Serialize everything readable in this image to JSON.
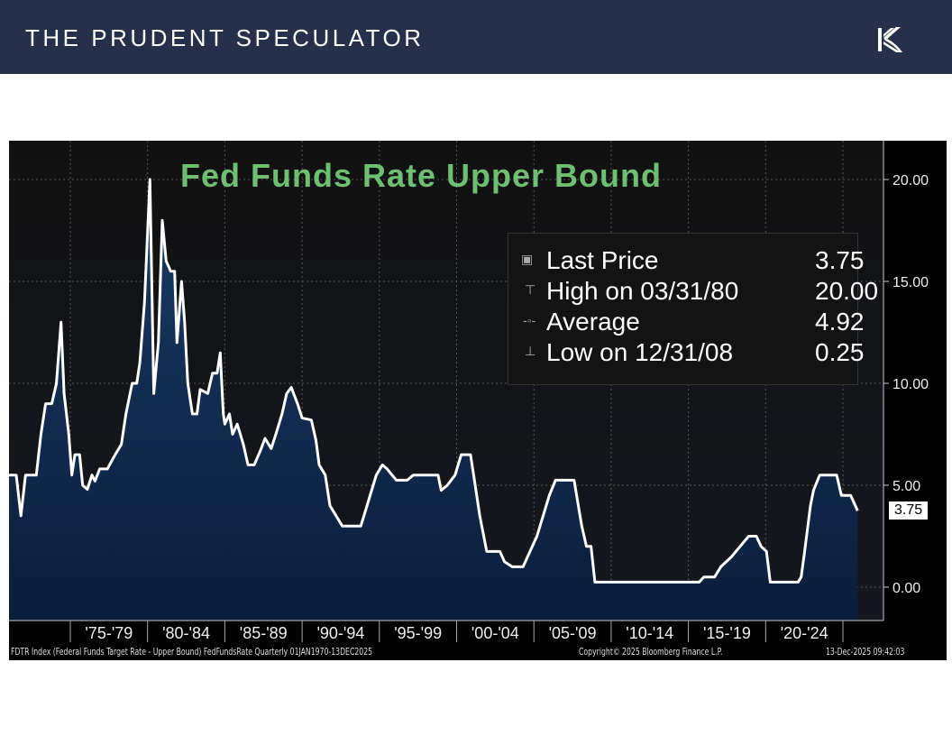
{
  "header": {
    "brand": "THE PRUDENT SPECULATOR",
    "logo": "prudent-speculator-logo"
  },
  "chart_data": {
    "type": "area",
    "title": "Fed Funds Rate Upper Bound",
    "y_ticks": [
      "0.00",
      "5.00",
      "10.00",
      "15.00",
      "20.00"
    ],
    "ylim": [
      -1.7,
      22
    ],
    "x_range": [
      1971,
      2025.95
    ],
    "x_tick_labels": [
      "'75-'79",
      "'80-'84",
      "'85-'89",
      "'90-'94",
      "'95-'99",
      "'00-'04",
      "'05-'09",
      "'10-'14",
      "'15-'19",
      "'20-'24"
    ],
    "x_tick_years": [
      1975,
      1980,
      1985,
      1990,
      1995,
      2000,
      2005,
      2010,
      2015,
      2020,
      2025
    ],
    "grid": true,
    "line_color": "#ffffff",
    "fill_color": "#0b2444",
    "title_color": "#6fbf73",
    "points": [
      [
        1971.0,
        5.5
      ],
      [
        1971.5,
        5.5
      ],
      [
        1971.8,
        3.5
      ],
      [
        1972.1,
        5.5
      ],
      [
        1972.8,
        5.5
      ],
      [
        1973.1,
        7.5
      ],
      [
        1973.4,
        9
      ],
      [
        1973.8,
        9
      ],
      [
        1974.1,
        10
      ],
      [
        1974.4,
        13
      ],
      [
        1974.6,
        9.5
      ],
      [
        1974.9,
        7.5
      ],
      [
        1975.1,
        5.5
      ],
      [
        1975.3,
        6.5
      ],
      [
        1975.6,
        6.5
      ],
      [
        1975.8,
        5
      ],
      [
        1976.1,
        4.8
      ],
      [
        1976.4,
        5.5
      ],
      [
        1976.6,
        5.2
      ],
      [
        1976.9,
        5.8
      ],
      [
        1977.4,
        5.8
      ],
      [
        1977.9,
        6.5
      ],
      [
        1978.3,
        7
      ],
      [
        1978.6,
        8.5
      ],
      [
        1979.0,
        10
      ],
      [
        1979.3,
        10
      ],
      [
        1979.5,
        11
      ],
      [
        1979.8,
        14
      ],
      [
        1980.15,
        20
      ],
      [
        1980.4,
        9.5
      ],
      [
        1980.7,
        12
      ],
      [
        1980.95,
        18
      ],
      [
        1981.2,
        16
      ],
      [
        1981.5,
        15.5
      ],
      [
        1981.75,
        15.5
      ],
      [
        1981.9,
        12
      ],
      [
        1982.2,
        15
      ],
      [
        1982.4,
        13
      ],
      [
        1982.6,
        10
      ],
      [
        1982.9,
        8.5
      ],
      [
        1983.2,
        8.5
      ],
      [
        1983.4,
        9.7
      ],
      [
        1983.9,
        9.5
      ],
      [
        1984.2,
        10.5
      ],
      [
        1984.5,
        10.5
      ],
      [
        1984.7,
        11.5
      ],
      [
        1984.9,
        8.5
      ],
      [
        1985.0,
        8
      ],
      [
        1985.3,
        8.5
      ],
      [
        1985.5,
        7.5
      ],
      [
        1985.8,
        8
      ],
      [
        1986.2,
        7
      ],
      [
        1986.5,
        6
      ],
      [
        1986.9,
        6
      ],
      [
        1987.3,
        6.7
      ],
      [
        1987.6,
        7.3
      ],
      [
        1988.0,
        6.8
      ],
      [
        1988.3,
        7.5
      ],
      [
        1988.7,
        8.5
      ],
      [
        1989.0,
        9.5
      ],
      [
        1989.3,
        9.8
      ],
      [
        1989.7,
        9
      ],
      [
        1990.0,
        8.3
      ],
      [
        1990.6,
        8.2
      ],
      [
        1990.9,
        7.2
      ],
      [
        1991.1,
        6
      ],
      [
        1991.5,
        5.5
      ],
      [
        1991.8,
        4
      ],
      [
        1992.2,
        3.5
      ],
      [
        1992.6,
        3
      ],
      [
        1993.8,
        3
      ],
      [
        1994.0,
        3.5
      ],
      [
        1994.4,
        4.5
      ],
      [
        1994.8,
        5.5
      ],
      [
        1995.2,
        6
      ],
      [
        1995.5,
        5.8
      ],
      [
        1996.1,
        5.25
      ],
      [
        1996.8,
        5.25
      ],
      [
        1997.2,
        5.5
      ],
      [
        1998.8,
        5.5
      ],
      [
        1999.0,
        4.75
      ],
      [
        1999.4,
        5
      ],
      [
        1999.9,
        5.5
      ],
      [
        2000.3,
        6.5
      ],
      [
        2000.9,
        6.5
      ],
      [
        2001.2,
        5
      ],
      [
        2001.5,
        3.5
      ],
      [
        2001.95,
        1.75
      ],
      [
        2002.8,
        1.75
      ],
      [
        2003.1,
        1.25
      ],
      [
        2003.6,
        1
      ],
      [
        2004.3,
        1
      ],
      [
        2004.6,
        1.5
      ],
      [
        2005.2,
        2.5
      ],
      [
        2006.0,
        4.5
      ],
      [
        2006.4,
        5.25
      ],
      [
        2007.6,
        5.25
      ],
      [
        2008.1,
        3
      ],
      [
        2008.4,
        2
      ],
      [
        2008.7,
        2
      ],
      [
        2008.95,
        0.25
      ],
      [
        2015.7,
        0.25
      ],
      [
        2016.0,
        0.5
      ],
      [
        2016.7,
        0.5
      ],
      [
        2017.1,
        1
      ],
      [
        2017.8,
        1.5
      ],
      [
        2018.9,
        2.5
      ],
      [
        2019.4,
        2.5
      ],
      [
        2019.7,
        2
      ],
      [
        2020.05,
        1.75
      ],
      [
        2020.3,
        0.25
      ],
      [
        2022.1,
        0.25
      ],
      [
        2022.3,
        0.5
      ],
      [
        2022.5,
        1.6
      ],
      [
        2022.9,
        4
      ],
      [
        2023.1,
        4.75
      ],
      [
        2023.5,
        5.5
      ],
      [
        2024.6,
        5.5
      ],
      [
        2024.9,
        4.5
      ],
      [
        2025.5,
        4.5
      ],
      [
        2025.95,
        3.75
      ]
    ],
    "legend": {
      "placement": "top-right",
      "rows": [
        {
          "icon": "square-icon",
          "label": "Last Price",
          "value": "3.75"
        },
        {
          "icon": "high-marker-icon",
          "label": "High on 03/31/80",
          "value": "20.00"
        },
        {
          "icon": "average-marker-icon",
          "label": "Average",
          "value": "4.92"
        },
        {
          "icon": "low-marker-icon",
          "label": "Low on 12/31/08",
          "value": "0.25"
        }
      ]
    },
    "last_value_tag": "3.75"
  },
  "footer": {
    "description": "FDTR Index (Federal Funds Target Rate - Upper Bound) FedFundsRate Quarterly 01JAN1970-13DEC2025",
    "copyright": "Copyright© 2025 Bloomberg Finance L.P.",
    "timestamp": "13-Dec-2025 09:42:03"
  }
}
